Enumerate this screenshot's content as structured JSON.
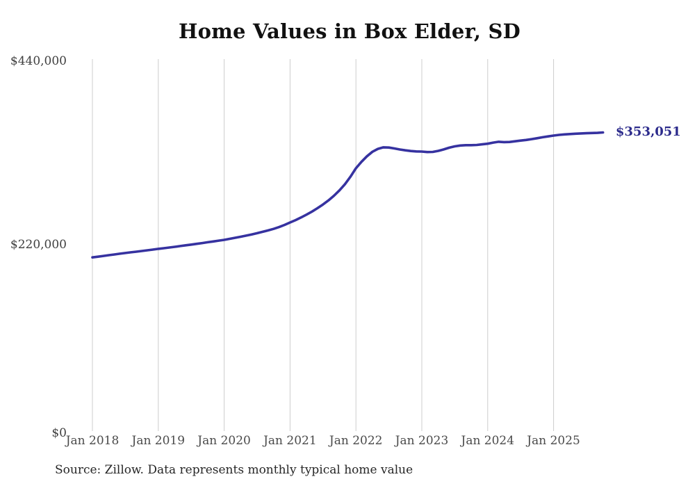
{
  "chart": {
    "title": "Home Values in Box Elder, SD",
    "end_label": "$353,051",
    "source": "Source: Zillow. Data represents monthly typical home value",
    "colors": {
      "line": "#3632a0",
      "end_label_text": "#2c2b8c",
      "gridline": "#cccccc",
      "title_text": "#111111",
      "axis_text": "#4a4a4a"
    }
  },
  "chart_data": {
    "type": "line",
    "title": "Home Values in Box Elder, SD",
    "series_name": "Monthly typical home value",
    "frequency": "monthly",
    "x_start": "Jan 2018",
    "x_end": "Oct 2025",
    "x_tick_labels": [
      "Jan 2018",
      "Jan 2019",
      "Jan 2020",
      "Jan 2021",
      "Jan 2022",
      "Jan 2023",
      "Jan 2024",
      "Jan 2025"
    ],
    "y_ticks": [
      {
        "label": "$440,000",
        "value": 440000
      },
      {
        "label": "$220,000",
        "value": 220000
      },
      {
        "label": "$0",
        "value": 0
      }
    ],
    "ylim": [
      0,
      440000
    ],
    "grid": "vertical-only",
    "legend": "none",
    "final_value": 353051,
    "final_value_label": "$353,051",
    "values": [
      205000,
      205800,
      206700,
      207600,
      208500,
      209400,
      210200,
      211000,
      211800,
      212600,
      213400,
      214200,
      215100,
      215900,
      216700,
      217500,
      218400,
      219300,
      220200,
      221100,
      222000,
      223000,
      223900,
      224900,
      225800,
      227000,
      228200,
      229500,
      230800,
      232200,
      233700,
      235300,
      237000,
      238800,
      240900,
      243500,
      246400,
      249200,
      252300,
      255700,
      259300,
      263300,
      267700,
      272600,
      278100,
      284400,
      291800,
      300600,
      310600,
      318200,
      324800,
      330200,
      333600,
      335400,
      335200,
      334100,
      332900,
      331900,
      331100,
      330600,
      330400,
      329800,
      330000,
      331200,
      333000,
      335000,
      336600,
      337600,
      338000,
      338000,
      338200,
      339000,
      339700,
      341000,
      342000,
      341600,
      341800,
      342600,
      343400,
      344200,
      345200,
      346200,
      347400,
      348400,
      349400,
      350200,
      350800,
      351200,
      351600,
      351900,
      352200,
      352400,
      352600,
      353051
    ]
  }
}
